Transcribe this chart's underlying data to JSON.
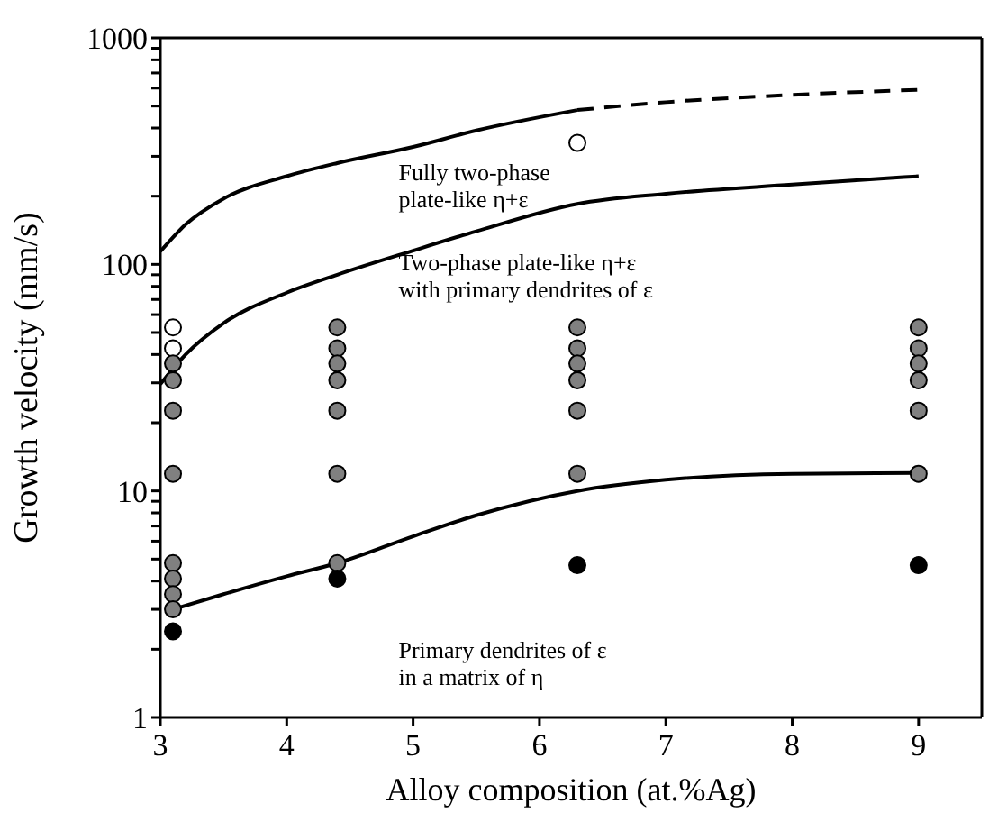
{
  "chart_data": {
    "type": "scatter",
    "xlabel": "Alloy composition (at.%Ag)",
    "ylabel": "Growth velocity (mm/s)",
    "log": "y",
    "xlim": [
      3,
      9.5
    ],
    "xticks": [
      3,
      4,
      5,
      6,
      7,
      8,
      9
    ],
    "ylim": [
      1,
      1000
    ],
    "yticks": [
      1,
      {
        "value": 2,
        "label": null
      },
      {
        "value": 3,
        "label": null
      },
      {
        "value": 4,
        "label": null
      },
      {
        "value": 5,
        "label": null
      },
      {
        "value": 6,
        "label": null
      },
      {
        "value": 7,
        "label": null
      },
      {
        "value": 8,
        "label": null
      },
      {
        "value": 9,
        "label": null
      },
      10,
      {
        "value": 20,
        "label": null
      },
      {
        "value": 30,
        "label": null
      },
      {
        "value": 40,
        "label": null
      },
      {
        "value": 50,
        "label": null
      },
      {
        "value": 60,
        "label": null
      },
      {
        "value": 70,
        "label": null
      },
      {
        "value": 80,
        "label": null
      },
      {
        "value": 90,
        "label": null
      },
      100,
      {
        "value": 200,
        "label": null
      },
      {
        "value": 300,
        "label": null
      },
      {
        "value": 400,
        "label": null
      },
      {
        "value": 500,
        "label": null
      },
      {
        "value": 600,
        "label": null
      },
      {
        "value": 700,
        "label": null
      },
      {
        "value": 800,
        "label": null
      },
      {
        "value": 900,
        "label": null
      },
      1000
    ],
    "annotations": [
      "Fully two-phase\nplate-like η+ε",
      "Two-phase plate-like η+ε\nwith primary dendrites of ε",
      "Primary dendrites of ε\nin a matrix of η"
    ],
    "series": [
      {
        "marker": "circle",
        "color": "#ffffff",
        "x": [
          3.1,
          3.1,
          6.3
        ],
        "values": [
          52.7,
          42.6,
          344
        ]
      },
      {
        "marker": "circle",
        "color": "#808080",
        "x": [
          3.1,
          3.1,
          3.1,
          3.1,
          3.1,
          3.1,
          3.1,
          3.1,
          4.4,
          4.4,
          4.4,
          4.4,
          4.4,
          4.4,
          4.4,
          6.3,
          6.3,
          6.3,
          6.3,
          6.3,
          6.3,
          9,
          9,
          9,
          9,
          9,
          9
        ],
        "values": [
          36.5,
          30.8,
          22.6,
          11.9,
          4.8,
          4.1,
          3.5,
          3.0,
          52.7,
          42.6,
          36.5,
          30.8,
          22.6,
          11.9,
          4.8,
          52.7,
          42.6,
          36.5,
          30.8,
          22.6,
          11.9,
          52.7,
          42.6,
          36.5,
          30.8,
          22.6,
          11.9
        ]
      },
      {
        "marker": "circle",
        "color": "#000000",
        "x": [
          3.1,
          4.4,
          6.3,
          9
        ],
        "values": [
          2.4,
          4.1,
          4.7,
          4.7
        ]
      },
      {
        "type": "line",
        "marker": "none",
        "line_style": "solid",
        "color": "#000000",
        "x": [
          3.1,
          3.5,
          4,
          4.4,
          5,
          5.5,
          6.3,
          7,
          8,
          9
        ],
        "values": [
          3.0,
          3.5,
          4.2,
          4.8,
          6.3,
          7.8,
          10,
          11.2,
          11.9,
          12
        ]
      },
      {
        "type": "line",
        "marker": "none",
        "line_style": "solid",
        "color": "#000000",
        "x": [
          3,
          3.2,
          3.5,
          4,
          4.4,
          5,
          5.5,
          6.3,
          7,
          8,
          9
        ],
        "values": [
          29.6,
          40,
          55,
          75,
          90,
          115,
          140,
          185,
          205,
          225,
          245
        ]
      },
      {
        "type": "line",
        "marker": "none",
        "line_style": "solid",
        "color": "#000000",
        "x": [
          3,
          3.2,
          3.5,
          4,
          4.4,
          5,
          5.5,
          6.3
        ],
        "values": [
          114,
          150,
          195,
          245,
          280,
          330,
          390,
          480
        ]
      },
      {
        "type": "line",
        "marker": "none",
        "line_style": "dashed",
        "color": "#000000",
        "x": [
          6.3,
          7,
          8,
          9
        ],
        "values": [
          480,
          520,
          560,
          590
        ]
      }
    ]
  }
}
